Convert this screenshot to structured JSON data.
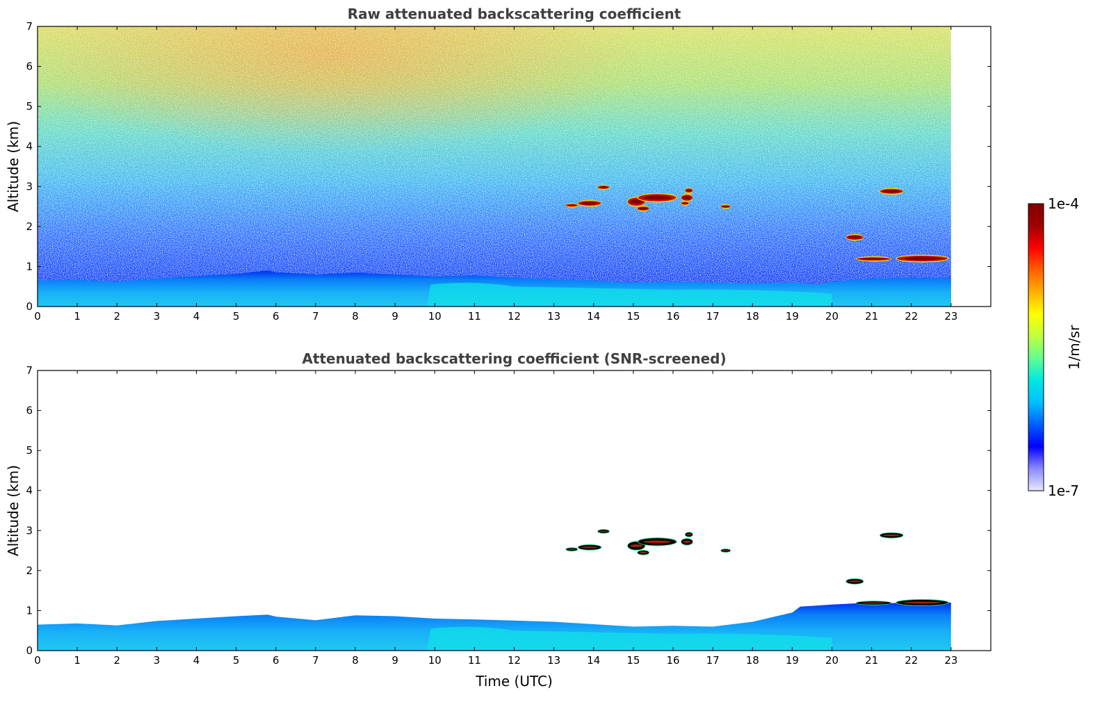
{
  "chart_data": [
    {
      "type": "heatmap",
      "title": "Raw attenuated backscattering coefficient",
      "ylabel": "Altitude (km)",
      "xlabel": "",
      "xlim": [
        0,
        24
      ],
      "ylim": [
        0,
        7
      ],
      "x_ticks": [
        0,
        1,
        2,
        3,
        4,
        5,
        6,
        7,
        8,
        9,
        10,
        11,
        12,
        13,
        14,
        15,
        16,
        17,
        18,
        19,
        20,
        21,
        22,
        23
      ],
      "y_ticks": [
        0,
        1,
        2,
        3,
        4,
        5,
        6,
        7
      ],
      "data_extent_hours": [
        0,
        23
      ],
      "boundary_layer_top_km": [
        [
          0,
          0.65
        ],
        [
          1,
          0.67
        ],
        [
          2,
          0.62
        ],
        [
          3,
          0.7
        ],
        [
          4,
          0.76
        ],
        [
          5,
          0.82
        ],
        [
          5.8,
          0.9
        ],
        [
          6,
          0.86
        ],
        [
          7,
          0.8
        ],
        [
          8,
          0.85
        ],
        [
          9,
          0.8
        ],
        [
          10,
          0.75
        ],
        [
          11,
          0.78
        ],
        [
          12,
          0.72
        ],
        [
          13,
          0.68
        ],
        [
          14,
          0.65
        ],
        [
          15,
          0.6
        ],
        [
          16,
          0.62
        ],
        [
          17,
          0.6
        ],
        [
          18,
          0.58
        ],
        [
          19,
          0.6
        ],
        [
          19.6,
          0.55
        ],
        [
          20,
          0.62
        ],
        [
          21,
          0.7
        ],
        [
          22,
          0.72
        ],
        [
          23,
          0.72
        ]
      ],
      "cloud_layers": [
        {
          "t_start": 13.3,
          "t_end": 13.6,
          "alt_km": 2.53,
          "thickness_km": 0.07
        },
        {
          "t_start": 13.6,
          "t_end": 14.2,
          "alt_km": 2.58,
          "thickness_km": 0.12
        },
        {
          "t_start": 14.1,
          "t_end": 14.4,
          "alt_km": 2.98,
          "thickness_km": 0.08
        },
        {
          "t_start": 14.85,
          "t_end": 15.3,
          "alt_km": 2.62,
          "thickness_km": 0.2
        },
        {
          "t_start": 15.1,
          "t_end": 16.1,
          "alt_km": 2.72,
          "thickness_km": 0.18
        },
        {
          "t_start": 15.1,
          "t_end": 15.4,
          "alt_km": 2.45,
          "thickness_km": 0.1
        },
        {
          "t_start": 16.2,
          "t_end": 16.5,
          "alt_km": 2.72,
          "thickness_km": 0.15
        },
        {
          "t_start": 16.2,
          "t_end": 16.4,
          "alt_km": 2.58,
          "thickness_km": 0.07
        },
        {
          "t_start": 16.3,
          "t_end": 16.5,
          "alt_km": 2.9,
          "thickness_km": 0.1
        },
        {
          "t_start": 17.2,
          "t_end": 17.45,
          "alt_km": 2.5,
          "thickness_km": 0.06
        },
        {
          "t_start": 21.2,
          "t_end": 21.8,
          "alt_km": 2.88,
          "thickness_km": 0.12
        },
        {
          "t_start": 20.35,
          "t_end": 20.8,
          "alt_km": 1.73,
          "thickness_km": 0.12
        },
        {
          "t_start": 20.6,
          "t_end": 21.5,
          "alt_km": 1.19,
          "thickness_km": 0.08
        },
        {
          "t_start": 21.6,
          "t_end": 22.95,
          "alt_km": 1.2,
          "thickness_km": 0.14
        }
      ]
    },
    {
      "type": "heatmap",
      "title": "Attenuated backscattering coefficient (SNR-screened)",
      "ylabel": "Altitude (km)",
      "xlabel": "Time (UTC)",
      "xlim": [
        0,
        24
      ],
      "ylim": [
        0,
        7
      ],
      "x_ticks": [
        0,
        1,
        2,
        3,
        4,
        5,
        6,
        7,
        8,
        9,
        10,
        11,
        12,
        13,
        14,
        15,
        16,
        17,
        18,
        19,
        20,
        21,
        22,
        23
      ],
      "y_ticks": [
        0,
        1,
        2,
        3,
        4,
        5,
        6,
        7
      ],
      "data_extent_hours": [
        0,
        23
      ],
      "boundary_layer_top_km": [
        [
          0,
          0.65
        ],
        [
          1,
          0.68
        ],
        [
          2,
          0.63
        ],
        [
          3,
          0.74
        ],
        [
          4,
          0.8
        ],
        [
          5,
          0.86
        ],
        [
          5.8,
          0.9
        ],
        [
          6,
          0.85
        ],
        [
          7,
          0.76
        ],
        [
          8,
          0.88
        ],
        [
          9,
          0.86
        ],
        [
          10,
          0.8
        ],
        [
          11,
          0.78
        ],
        [
          12,
          0.75
        ],
        [
          13,
          0.72
        ],
        [
          14,
          0.66
        ],
        [
          15,
          0.6
        ],
        [
          16,
          0.62
        ],
        [
          17,
          0.6
        ],
        [
          18,
          0.72
        ],
        [
          19,
          0.95
        ],
        [
          19.2,
          1.1
        ],
        [
          20,
          1.15
        ],
        [
          21,
          1.2
        ],
        [
          22,
          1.18
        ],
        [
          23,
          1.2
        ]
      ],
      "cloud_layers": [
        {
          "t_start": 13.3,
          "t_end": 13.6,
          "alt_km": 2.53,
          "thickness_km": 0.07
        },
        {
          "t_start": 13.6,
          "t_end": 14.2,
          "alt_km": 2.58,
          "thickness_km": 0.12
        },
        {
          "t_start": 14.1,
          "t_end": 14.4,
          "alt_km": 2.98,
          "thickness_km": 0.08
        },
        {
          "t_start": 14.85,
          "t_end": 15.3,
          "alt_km": 2.62,
          "thickness_km": 0.2
        },
        {
          "t_start": 15.1,
          "t_end": 16.1,
          "alt_km": 2.72,
          "thickness_km": 0.18
        },
        {
          "t_start": 15.1,
          "t_end": 15.4,
          "alt_km": 2.45,
          "thickness_km": 0.1
        },
        {
          "t_start": 16.2,
          "t_end": 16.5,
          "alt_km": 2.72,
          "thickness_km": 0.15
        },
        {
          "t_start": 16.3,
          "t_end": 16.5,
          "alt_km": 2.9,
          "thickness_km": 0.1
        },
        {
          "t_start": 17.2,
          "t_end": 17.45,
          "alt_km": 2.5,
          "thickness_km": 0.06
        },
        {
          "t_start": 21.2,
          "t_end": 21.8,
          "alt_km": 2.88,
          "thickness_km": 0.12
        },
        {
          "t_start": 20.35,
          "t_end": 20.8,
          "alt_km": 1.73,
          "thickness_km": 0.12
        },
        {
          "t_start": 20.6,
          "t_end": 21.5,
          "alt_km": 1.19,
          "thickness_km": 0.08
        },
        {
          "t_start": 21.6,
          "t_end": 22.95,
          "alt_km": 1.2,
          "thickness_km": 0.14
        }
      ]
    }
  ],
  "colorbar": {
    "label": "1/m/sr",
    "max_label": "1e-4",
    "min_label": "1e-7",
    "scale": "log",
    "range": [
      1e-07,
      0.0001
    ],
    "colors": [
      "#e8e8ff",
      "#8a8aff",
      "#0000ff",
      "#0060ff",
      "#00c0ff",
      "#00e8e0",
      "#60ff90",
      "#c0ff40",
      "#ffff00",
      "#ffb000",
      "#ff6000",
      "#ff0000",
      "#a00000",
      "#800000"
    ]
  }
}
